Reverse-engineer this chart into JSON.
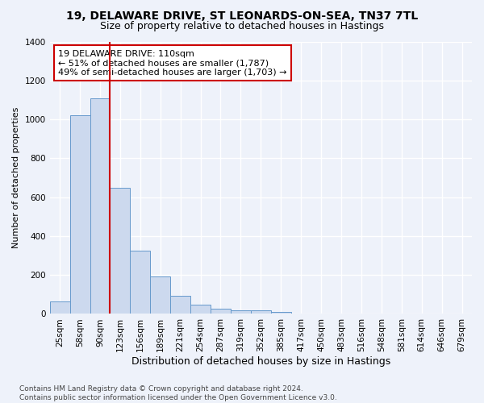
{
  "title": "19, DELAWARE DRIVE, ST LEONARDS-ON-SEA, TN37 7TL",
  "subtitle": "Size of property relative to detached houses in Hastings",
  "xlabel": "Distribution of detached houses by size in Hastings",
  "ylabel": "Number of detached properties",
  "bar_color": "#ccd9ee",
  "bar_edge_color": "#6699cc",
  "categories": [
    "25sqm",
    "58sqm",
    "90sqm",
    "123sqm",
    "156sqm",
    "189sqm",
    "221sqm",
    "254sqm",
    "287sqm",
    "319sqm",
    "352sqm",
    "385sqm",
    "417sqm",
    "450sqm",
    "483sqm",
    "516sqm",
    "548sqm",
    "581sqm",
    "614sqm",
    "646sqm",
    "679sqm"
  ],
  "values": [
    65,
    1020,
    1110,
    650,
    325,
    192,
    95,
    48,
    25,
    20,
    18,
    12,
    0,
    0,
    0,
    0,
    0,
    0,
    0,
    0,
    0
  ],
  "ylim": [
    0,
    1400
  ],
  "yticks": [
    0,
    200,
    400,
    600,
    800,
    1000,
    1200,
    1400
  ],
  "annotation_title": "19 DELAWARE DRIVE: 110sqm",
  "annotation_line1": "← 51% of detached houses are smaller (1,787)",
  "annotation_line2": "49% of semi-detached houses are larger (1,703) →",
  "annotation_box_color": "#ffffff",
  "annotation_box_edge": "#cc0000",
  "vline_color": "#cc0000",
  "background_color": "#eef2fa",
  "grid_color": "#ffffff",
  "footer_text": "Contains HM Land Registry data © Crown copyright and database right 2024.\nContains public sector information licensed under the Open Government Licence v3.0.",
  "title_fontsize": 10,
  "subtitle_fontsize": 9,
  "xlabel_fontsize": 9,
  "ylabel_fontsize": 8,
  "tick_fontsize": 7.5,
  "annotation_fontsize": 8,
  "footer_fontsize": 6.5
}
